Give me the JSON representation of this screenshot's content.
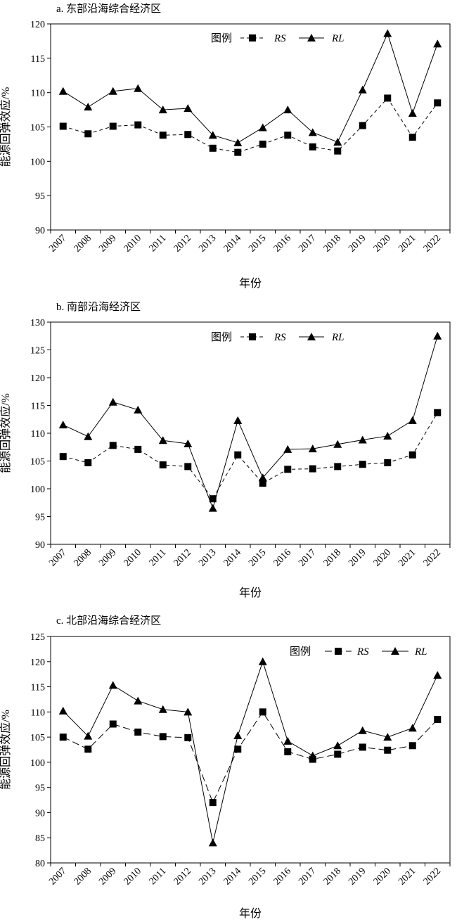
{
  "chart_data": [
    {
      "type": "line",
      "title": "a. 东部沿海综合经济区",
      "xlabel": "年份",
      "ylabel": "能源回弹效应/%",
      "ylim": [
        90,
        120
      ],
      "yticks": [
        90,
        95,
        100,
        105,
        110,
        115,
        120
      ],
      "categories": [
        "2007",
        "2008",
        "2009",
        "2010",
        "2011",
        "2012",
        "2013",
        "2014",
        "2015",
        "2016",
        "2017",
        "2018",
        "2019",
        "2020",
        "2021",
        "2022"
      ],
      "legend_title": "图例",
      "legend_position": "top-center",
      "series": [
        {
          "name": "RS",
          "marker": "square",
          "line_style": "dashed",
          "color": "#000000",
          "values": [
            105.1,
            104.0,
            105.1,
            105.3,
            103.8,
            103.9,
            101.9,
            101.3,
            102.5,
            103.8,
            102.1,
            101.5,
            105.2,
            109.2,
            103.5,
            108.5
          ]
        },
        {
          "name": "RL",
          "marker": "triangle",
          "line_style": "solid",
          "color": "#000000",
          "values": [
            110.2,
            107.9,
            110.2,
            110.6,
            107.5,
            107.7,
            103.8,
            102.7,
            104.9,
            107.5,
            104.2,
            102.8,
            110.4,
            118.6,
            107.0,
            117.1
          ]
        }
      ]
    },
    {
      "type": "line",
      "title": "b. 南部沿海经济区",
      "xlabel": "年份",
      "ylabel": "能源回弹效应/%",
      "ylim": [
        90,
        130
      ],
      "yticks": [
        90,
        95,
        100,
        105,
        110,
        115,
        120,
        125,
        130
      ],
      "categories": [
        "2007",
        "2008",
        "2009",
        "2010",
        "2011",
        "2012",
        "2013",
        "2014",
        "2015",
        "2016",
        "2017",
        "2018",
        "2019",
        "2020",
        "2021",
        "2022"
      ],
      "legend_title": "图例",
      "legend_position": "top-center",
      "series": [
        {
          "name": "RS",
          "marker": "square",
          "line_style": "dashed",
          "color": "#000000",
          "values": [
            105.8,
            104.7,
            107.8,
            107.1,
            104.3,
            104.0,
            98.2,
            106.1,
            101.0,
            103.5,
            103.6,
            104.0,
            104.4,
            104.7,
            106.1,
            113.7
          ]
        },
        {
          "name": "RL",
          "marker": "triangle",
          "line_style": "solid",
          "color": "#000000",
          "values": [
            111.5,
            109.4,
            115.6,
            114.2,
            108.7,
            108.1,
            96.5,
            112.3,
            102.0,
            107.1,
            107.2,
            108.0,
            108.8,
            109.5,
            112.3,
            127.5
          ]
        }
      ]
    },
    {
      "type": "line",
      "title": "c. 北部沿海综合经济区",
      "xlabel": "年份",
      "ylabel": "能源回弹效应/%",
      "ylim": [
        80,
        125
      ],
      "yticks": [
        80,
        85,
        90,
        95,
        100,
        105,
        110,
        115,
        120,
        125
      ],
      "categories": [
        "2007",
        "2008",
        "2009",
        "2010",
        "2011",
        "2012",
        "2013",
        "2014",
        "2015",
        "2016",
        "2017",
        "2018",
        "2019",
        "2020",
        "2021",
        "2022"
      ],
      "legend_title": "图例",
      "legend_position": "top-right",
      "series": [
        {
          "name": "RS",
          "marker": "square",
          "line_style": "long-dashed",
          "color": "#000000",
          "values": [
            105.0,
            102.6,
            107.6,
            106.0,
            105.1,
            104.9,
            92.0,
            102.6,
            110.0,
            102.1,
            100.6,
            101.6,
            103.0,
            102.4,
            103.3,
            108.5
          ]
        },
        {
          "name": "RL",
          "marker": "triangle",
          "line_style": "solid",
          "color": "#000000",
          "values": [
            110.2,
            105.2,
            115.3,
            112.2,
            110.5,
            110.0,
            84.0,
            105.3,
            120.0,
            104.2,
            101.3,
            103.3,
            106.3,
            105.0,
            106.8,
            117.3
          ]
        }
      ]
    }
  ]
}
